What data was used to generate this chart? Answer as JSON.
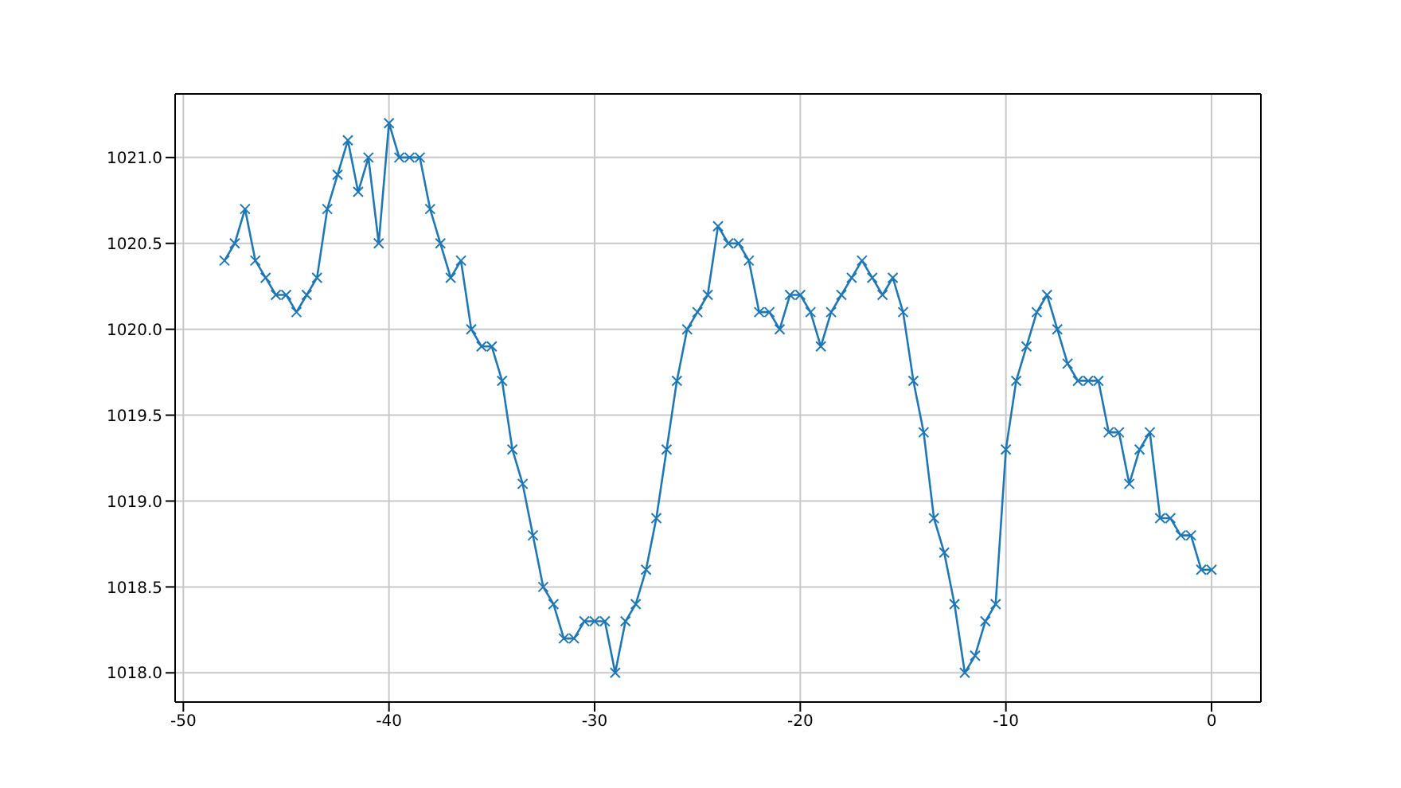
{
  "chart_data": {
    "type": "line",
    "x": [
      -48,
      -47.5,
      -47,
      -46.5,
      -46,
      -45.5,
      -45,
      -44.5,
      -44,
      -43.5,
      -43,
      -42.5,
      -42,
      -41.5,
      -41,
      -40.5,
      -40,
      -39.5,
      -39,
      -38.5,
      -38,
      -37.5,
      -37,
      -36.5,
      -36,
      -35.5,
      -35,
      -34.5,
      -34,
      -33.5,
      -33,
      -32.5,
      -32,
      -31.5,
      -31,
      -30.5,
      -30,
      -29.5,
      -29,
      -28.5,
      -28,
      -27.5,
      -27,
      -26.5,
      -26,
      -25.5,
      -25,
      -24.5,
      -24,
      -23.5,
      -23,
      -22.5,
      -22,
      -21.5,
      -21,
      -20.5,
      -20,
      -19.5,
      -19,
      -18.5,
      -18,
      -17.5,
      -17,
      -16.5,
      -16,
      -15.5,
      -15,
      -14.5,
      -14,
      -13.5,
      -13,
      -12.5,
      -12,
      -11.5,
      -11,
      -10.5,
      -10,
      -9.5,
      -9,
      -8.5,
      -8,
      -7.5,
      -7,
      -6.5,
      -6,
      -5.5,
      -5,
      -4.5,
      -4,
      -3.5,
      -3,
      -2.5,
      -2,
      -1.5,
      -1,
      -0.5,
      0
    ],
    "series": [
      {
        "color": "#1f77b4",
        "values": [
          1020.4,
          1020.5,
          1020.7,
          1020.4,
          1020.3,
          1020.2,
          1020.2,
          1020.1,
          1020.2,
          1020.3,
          1020.7,
          1020.9,
          1021.1,
          1020.8,
          1021.0,
          1020.5,
          1021.2,
          1021.0,
          1021.0,
          1021.0,
          1020.7,
          1020.5,
          1020.3,
          1020.4,
          1020.0,
          1019.9,
          1019.9,
          1019.7,
          1019.3,
          1019.1,
          1018.8,
          1018.5,
          1018.4,
          1018.2,
          1018.2,
          1018.3,
          1018.3,
          1018.3,
          1018.0,
          1018.3,
          1018.4,
          1018.6,
          1018.9,
          1019.3,
          1019.7,
          1020.0,
          1020.1,
          1020.2,
          1020.6,
          1020.5,
          1020.5,
          1020.4,
          1020.1,
          1020.1,
          1020.0,
          1020.2,
          1020.2,
          1020.1,
          1019.9,
          1020.1,
          1020.2,
          1020.3,
          1020.4,
          1020.3,
          1020.2,
          1020.3,
          1020.1,
          1019.7,
          1019.4,
          1018.9,
          1018.7,
          1018.4,
          1018.0,
          1018.1,
          1018.3,
          1018.4,
          1019.3,
          1019.7,
          1019.9,
          1020.1,
          1020.2,
          1020.0,
          1019.8,
          1019.7,
          1019.7,
          1019.7,
          1019.4,
          1019.4,
          1019.1,
          1019.3,
          1019.4,
          1018.9,
          1018.9,
          1018.8,
          1018.8,
          1018.6,
          1018.6
        ]
      }
    ],
    "xlim": [
      -50.4,
      2.4
    ],
    "xticks": [
      -50,
      -40,
      -30,
      -20,
      -10,
      0
    ],
    "ylim": [
      1017.83,
      1021.37
    ],
    "yticks": [
      {
        "value": 1018,
        "label": "1018.0"
      },
      {
        "value": 1018.5,
        "label": "1018.5"
      },
      {
        "value": 1019,
        "label": "1019.0"
      },
      {
        "value": 1019.5,
        "label": "1019.5"
      },
      {
        "value": 1020,
        "label": "1020.0"
      },
      {
        "value": 1020.5,
        "label": "1020.5"
      },
      {
        "value": 1021,
        "label": "1021.0"
      }
    ],
    "grid": true,
    "marker": "cross",
    "line_style": "solid"
  }
}
